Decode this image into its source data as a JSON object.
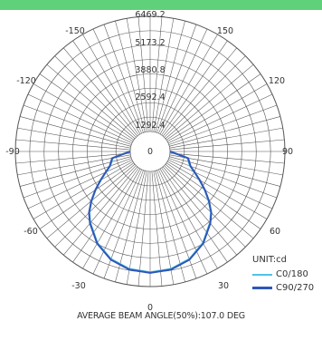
{
  "chart_data": {
    "type": "polar",
    "rings": [
      "6469.2",
      "5173.2",
      "3880.8",
      "2592.4",
      "1292.4",
      "0"
    ],
    "angle_ticks": [
      "-150",
      "150",
      "-120",
      "120",
      "-90",
      "90",
      "-60",
      "60",
      "-30",
      "30",
      "0"
    ],
    "unit_label": "UNIT:cd",
    "max_value": 6469.2,
    "series": [
      {
        "name": "C0/180",
        "color": "#4fc3e8",
        "points": [
          [
            0,
            5650
          ],
          [
            10,
            5560
          ],
          [
            20,
            5300
          ],
          [
            30,
            4800
          ],
          [
            40,
            4100
          ],
          [
            45,
            3700
          ],
          [
            50,
            3150
          ],
          [
            55,
            2600
          ],
          [
            60,
            2050
          ],
          [
            65,
            1600
          ],
          [
            70,
            1250
          ],
          [
            80,
            1000
          ],
          [
            90,
            0
          ]
        ]
      },
      {
        "name": "C90/270",
        "color": "#2e57b8",
        "points": [
          [
            0,
            5700
          ],
          [
            10,
            5620
          ],
          [
            20,
            5350
          ],
          [
            30,
            4850
          ],
          [
            40,
            4150
          ],
          [
            45,
            3750
          ],
          [
            50,
            3200
          ],
          [
            55,
            2650
          ],
          [
            60,
            2100
          ],
          [
            65,
            1650
          ],
          [
            70,
            1300
          ],
          [
            80,
            1050
          ],
          [
            90,
            0
          ]
        ]
      }
    ],
    "footer": "AVERAGE BEAM ANGLE(50%):107.0 DEG"
  }
}
